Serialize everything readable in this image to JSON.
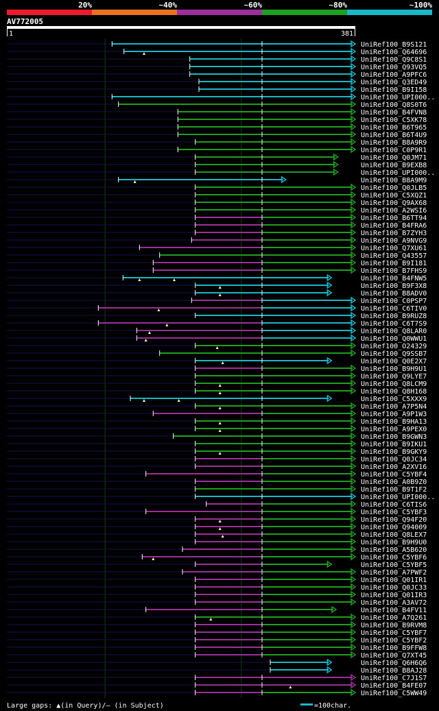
{
  "chart_data": {
    "type": "alignment-overview",
    "query_id": "AV772005",
    "query_range": [
      "1",
      "381"
    ],
    "identity_scale": {
      "labels": [
        "20%",
        "~40%",
        "~60%",
        "~80%",
        "~100%"
      ],
      "colors": [
        "#ee1b30",
        "#e8721f",
        "#9b2f9b",
        "#1f9e1f",
        "#18b8c8"
      ]
    },
    "legend_gap_text": "Large gaps: ▲(in Query)/– (in Subject)",
    "legend_scale_text": "=100char.",
    "hits": [
      {
        "id": "UniRef100_B9S121",
        "start": 115,
        "end": 381,
        "tail": "c"
      },
      {
        "id": "UniRef100_Q64696",
        "start": 128,
        "end": 381,
        "tail": "c",
        "q": [
          150
        ]
      },
      {
        "id": "UniRef100_Q9C8S1",
        "start": 200,
        "end": 381,
        "tail": "c",
        "head": "c"
      },
      {
        "id": "UniRef100_Q93VQ5",
        "start": 200,
        "end": 381,
        "tail": "c",
        "head": "c"
      },
      {
        "id": "UniRef100_A9PFC6",
        "start": 200,
        "end": 381,
        "tail": "c",
        "head": "c"
      },
      {
        "id": "UniRef100_Q3ED49",
        "start": 210,
        "end": 381,
        "tail": "c",
        "head": "c"
      },
      {
        "id": "UniRef100_B9I158",
        "start": 210,
        "end": 381,
        "tail": "c",
        "head": "c"
      },
      {
        "id": "UniRef100_UPI000..",
        "start": 115,
        "end": 381,
        "tail": "c"
      },
      {
        "id": "UniRef100_Q8S0T6",
        "start": 122,
        "end": 381,
        "tail": "g"
      },
      {
        "id": "UniRef100_B4FVN8",
        "start": 187,
        "end": 381,
        "tail": "g"
      },
      {
        "id": "UniRef100_C5XK78",
        "start": 187,
        "end": 381,
        "tail": "g"
      },
      {
        "id": "UniRef100_B6T965",
        "start": 187,
        "end": 381,
        "tail": "g"
      },
      {
        "id": "UniRef100_B6T4U9",
        "start": 187,
        "end": 381,
        "tail": "g"
      },
      {
        "id": "UniRef100_B8A9R9",
        "start": 206,
        "end": 381,
        "tail": "g"
      },
      {
        "id": "UniRef100_C0P9R1",
        "start": 187,
        "end": 381,
        "tail": "g"
      },
      {
        "id": "UniRef100_Q0JM71",
        "start": 206,
        "end": 362,
        "tail": "g"
      },
      {
        "id": "UniRef100_B9EXB8",
        "start": 206,
        "end": 362,
        "tail": "g"
      },
      {
        "id": "UniRef100_UPI000..",
        "start": 206,
        "end": 362,
        "tail": "g"
      },
      {
        "id": "UniRef100_B8A9M9",
        "start": 122,
        "end": 305,
        "tail": "c",
        "q": [
          140
        ]
      },
      {
        "id": "UniRef100_Q0JLB5",
        "start": 206,
        "end": 381,
        "tail": "g"
      },
      {
        "id": "UniRef100_C5XQZ1",
        "start": 206,
        "end": 381,
        "tail": "g"
      },
      {
        "id": "UniRef100_Q9AX68",
        "start": 206,
        "end": 381,
        "tail": "g"
      },
      {
        "id": "UniRef100_A2WSI6",
        "start": 206,
        "end": 381,
        "tail": "g"
      },
      {
        "id": "UniRef100_B6TT94",
        "start": 206,
        "end": 381,
        "tail": "g",
        "head": "m"
      },
      {
        "id": "UniRef100_B4FRA6",
        "start": 206,
        "end": 381,
        "tail": "g",
        "head": "m"
      },
      {
        "id": "UniRef100_B7ZYH3",
        "start": 206,
        "end": 381,
        "tail": "g",
        "head": "m"
      },
      {
        "id": "UniRef100_A9NVG9",
        "start": 202,
        "end": 381,
        "tail": "g",
        "head": "m"
      },
      {
        "id": "UniRef100_Q7XU61",
        "start": 145,
        "end": 381,
        "tail": "g",
        "head": "m"
      },
      {
        "id": "UniRef100_Q43557",
        "start": 167,
        "end": 381,
        "tail": "g"
      },
      {
        "id": "UniRef100_B9I181",
        "start": 160,
        "end": 381,
        "tail": "g",
        "head": "m"
      },
      {
        "id": "UniRef100_B7FHS9",
        "start": 160,
        "end": 381,
        "tail": "g",
        "head": "m"
      },
      {
        "id": "UniRef100_B4FNW5",
        "start": 127,
        "end": 355,
        "tail": "c",
        "q": [
          145,
          183
        ]
      },
      {
        "id": "UniRef100_B9F3X8",
        "start": 206,
        "end": 355,
        "tail": "c",
        "q": [
          233
        ]
      },
      {
        "id": "UniRef100_B8ADV0",
        "start": 206,
        "end": 355,
        "tail": "c",
        "q": [
          233
        ]
      },
      {
        "id": "UniRef100_C0PSP7",
        "start": 202,
        "end": 381,
        "tail": "c",
        "head": "m"
      },
      {
        "id": "UniRef100_C6TIV0",
        "start": 100,
        "end": 381,
        "tail": "c",
        "head": "m",
        "q": [
          166
        ]
      },
      {
        "id": "UniRef100_B9RUZ8",
        "start": 206,
        "end": 381,
        "tail": "c"
      },
      {
        "id": "UniRef100_C6T7S9",
        "start": 100,
        "end": 381,
        "tail": "c",
        "head": "m",
        "q": [
          175
        ]
      },
      {
        "id": "UniRef100_Q8LAR0",
        "start": 142,
        "end": 381,
        "tail": "c",
        "head": "m",
        "q": [
          156
        ]
      },
      {
        "id": "UniRef100_Q0WWU1",
        "start": 142,
        "end": 381,
        "tail": "c",
        "head": "m",
        "q": [
          152
        ]
      },
      {
        "id": "UniRef100_O24329",
        "start": 206,
        "end": 381,
        "tail": "g",
        "q": [
          230
        ]
      },
      {
        "id": "UniRef100_Q9SSB7",
        "start": 167,
        "end": 381,
        "tail": "g"
      },
      {
        "id": "UniRef100_Q0E2X7",
        "start": 206,
        "end": 355,
        "tail": "c",
        "q": [
          236
        ]
      },
      {
        "id": "UniRef100_B9H9U1",
        "start": 206,
        "end": 381,
        "tail": "g",
        "head": "m"
      },
      {
        "id": "UniRef100_Q9LYE7",
        "start": 206,
        "end": 381,
        "tail": "g"
      },
      {
        "id": "UniRef100_Q8LCM9",
        "start": 206,
        "end": 381,
        "tail": "g",
        "q": [
          233
        ]
      },
      {
        "id": "UniRef100_Q8H168",
        "start": 206,
        "end": 381,
        "tail": "g",
        "q": [
          233
        ]
      },
      {
        "id": "UniRef100_C5XXX9",
        "start": 135,
        "end": 355,
        "tail": "c",
        "q": [
          150,
          188
        ]
      },
      {
        "id": "UniRef100_A7P5N4",
        "start": 206,
        "end": 381,
        "tail": "g",
        "q": [
          233
        ]
      },
      {
        "id": "UniRef100_A9P1W3",
        "start": 160,
        "end": 381,
        "tail": "g",
        "head": "m"
      },
      {
        "id": "UniRef100_B9HA13",
        "start": 206,
        "end": 381,
        "tail": "g",
        "q": [
          233
        ]
      },
      {
        "id": "UniRef100_A9PEX0",
        "start": 206,
        "end": 381,
        "tail": "g",
        "q": [
          233
        ]
      },
      {
        "id": "UniRef100_B9GWN3",
        "start": 182,
        "end": 381,
        "tail": "g"
      },
      {
        "id": "UniRef100_B9IKU1",
        "start": 206,
        "end": 381,
        "tail": "g"
      },
      {
        "id": "UniRef100_B9GKY9",
        "start": 206,
        "end": 381,
        "tail": "g",
        "q": [
          233
        ]
      },
      {
        "id": "UniRef100_Q0JC34",
        "start": 206,
        "end": 381,
        "tail": "g",
        "head": "m"
      },
      {
        "id": "UniRef100_A2XV16",
        "start": 206,
        "end": 381,
        "tail": "g",
        "head": "m"
      },
      {
        "id": "UniRef100_C5YBF4",
        "start": 152,
        "end": 381,
        "tail": "g",
        "head": "m"
      },
      {
        "id": "UniRef100_A0B9Z0",
        "start": 206,
        "end": 381,
        "tail": "g",
        "head": "m"
      },
      {
        "id": "UniRef100_B9T1F2",
        "start": 206,
        "end": 381,
        "tail": "g"
      },
      {
        "id": "UniRef100_UPI000..",
        "start": 206,
        "end": 381,
        "tail": "c"
      },
      {
        "id": "UniRef100_C6TIS6",
        "start": 218,
        "end": 381,
        "tail": "g",
        "head": "m"
      },
      {
        "id": "UniRef100_C5YBF3",
        "start": 152,
        "end": 381,
        "tail": "g",
        "head": "m"
      },
      {
        "id": "UniRef100_Q94F20",
        "start": 206,
        "end": 381,
        "tail": "g",
        "head": "m",
        "q": [
          233
        ]
      },
      {
        "id": "UniRef100_Q94009",
        "start": 206,
        "end": 381,
        "tail": "g",
        "head": "m",
        "q": [
          233
        ]
      },
      {
        "id": "UniRef100_Q8LEX7",
        "start": 206,
        "end": 381,
        "tail": "g",
        "head": "m",
        "q": [
          236
        ]
      },
      {
        "id": "UniRef100_B9H9U0",
        "start": 206,
        "end": 381,
        "tail": "g",
        "head": "m"
      },
      {
        "id": "UniRef100_A5B620",
        "start": 192,
        "end": 381,
        "tail": "g",
        "head": "m"
      },
      {
        "id": "UniRef100_C5YBF6",
        "start": 148,
        "end": 381,
        "tail": "g",
        "head": "m",
        "q": [
          160
        ]
      },
      {
        "id": "UniRef100_C5YBF5",
        "start": 206,
        "end": 355,
        "tail": "g",
        "head": "m"
      },
      {
        "id": "UniRef100_A7PWF2",
        "start": 192,
        "end": 381,
        "tail": "g",
        "head": "m"
      },
      {
        "id": "UniRef100_Q01IR1",
        "start": 206,
        "end": 381,
        "tail": "g",
        "head": "m"
      },
      {
        "id": "UniRef100_Q0JC33",
        "start": 206,
        "end": 381,
        "tail": "g",
        "head": "m"
      },
      {
        "id": "UniRef100_Q01IR3",
        "start": 206,
        "end": 381,
        "tail": "g",
        "head": "m"
      },
      {
        "id": "UniRef100_A3AV72",
        "start": 206,
        "end": 381,
        "tail": "g",
        "head": "m"
      },
      {
        "id": "UniRef100_B4FV11",
        "start": 152,
        "end": 360,
        "tail": "g",
        "head": "m"
      },
      {
        "id": "UniRef100_A7Q261",
        "start": 206,
        "end": 381,
        "tail": "g",
        "q": [
          223
        ]
      },
      {
        "id": "UniRef100_B9RVM8",
        "start": 206,
        "end": 381,
        "tail": "g",
        "head": "m"
      },
      {
        "id": "UniRef100_C5YBF7",
        "start": 206,
        "end": 381,
        "tail": "g",
        "head": "m"
      },
      {
        "id": "UniRef100_C5YBF2",
        "start": 206,
        "end": 381,
        "tail": "g",
        "head": "m"
      },
      {
        "id": "UniRef100_B9FFW8",
        "start": 206,
        "end": 381,
        "tail": "g",
        "head": "m"
      },
      {
        "id": "UniRef100_Q7XT45",
        "start": 206,
        "end": 381,
        "tail": "g",
        "head": "m"
      },
      {
        "id": "UniRef100_Q6H6Q6",
        "start": 288,
        "end": 355,
        "tail": "c"
      },
      {
        "id": "UniRef100_B8AJ28",
        "start": 288,
        "end": 355,
        "tail": "c"
      },
      {
        "id": "UniRef100_C7J1S7",
        "start": 206,
        "end": 381,
        "tail": "m",
        "head": "m"
      },
      {
        "id": "UniRef100_B4FE07",
        "start": 206,
        "end": 381,
        "tail": "m",
        "head": "m",
        "q": [
          310
        ]
      },
      {
        "id": "UniRef100_C5WW49",
        "start": 206,
        "end": 381,
        "tail": "g",
        "head": "m"
      }
    ]
  }
}
